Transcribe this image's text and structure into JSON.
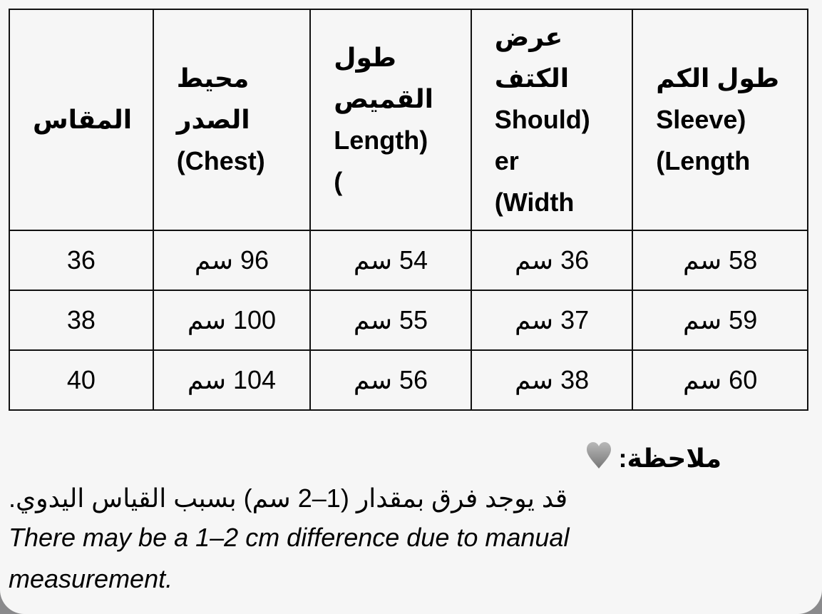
{
  "table": {
    "headers": [
      [
        "المقاس"
      ],
      [
        "محيط",
        "الصدر",
        "(Chest)"
      ],
      [
        "طول",
        "القميص",
        "Length)",
        "("
      ],
      [
        "عرض",
        "الكتف",
        "Should)",
        "er",
        "(Width"
      ],
      [
        "طول الكم",
        "Sleeve)",
        "(Length"
      ]
    ],
    "rows": [
      [
        "36",
        "96 سم",
        "54 سم",
        "36 سم",
        "58 سم"
      ],
      [
        "38",
        "100 سم",
        "55 سم",
        "37 سم",
        "59 سم"
      ],
      [
        "40",
        "104 سم",
        "56 سم",
        "38 سم",
        "60 سم"
      ]
    ]
  },
  "note": {
    "icon": "grey-heart-icon",
    "title": "ملاحظة:",
    "arabic": "قد يوجد فرق بمقدار (1–2 سم) بسبب القياس اليدوي.",
    "english": "There may be a 1–2 cm difference due to manual measurement."
  }
}
